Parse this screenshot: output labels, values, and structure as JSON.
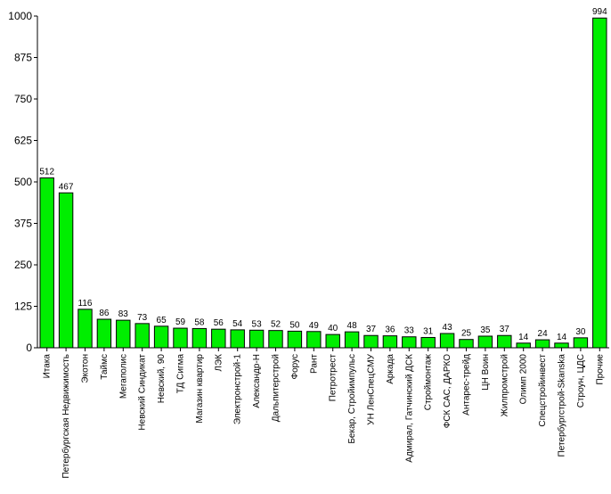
{
  "chart_data": {
    "type": "bar",
    "title": "",
    "xlabel": "",
    "ylabel": "",
    "ylim": [
      0,
      1000
    ],
    "yticks": [
      0,
      125,
      250,
      375,
      500,
      625,
      750,
      875,
      1000
    ],
    "grid": false,
    "legend": "none",
    "bar_color": "#00ee00",
    "bar_edge_color": "#000000",
    "categories": [
      "Итака",
      "Петербургская Недвижимость",
      "Экотон",
      "Таймс",
      "Мегаполис",
      "Невский Синдикат",
      "Невский, 90",
      "ТД Сигма",
      "Магазин квартир",
      "ЛЭК",
      "Электронстрой-1",
      "Александр-Н",
      "Дальпитерстрой",
      "Форус",
      "Рант",
      "Петротрест",
      "Бекар, Стройимпульс",
      "УН ЛенСпецСМУ",
      "Аркада",
      "Адмирал, Гатчинский ДСК",
      "Строймонтаж",
      "ФСК САС, ДАРКО",
      "Антарес-трейд",
      "ЦН Воин",
      "Жилпромстрой",
      "Олимп 2000",
      "Спецстройинвест",
      "Петербургстрой-Skanska",
      "Строун, ЦДС",
      "Прочие"
    ],
    "values": [
      512,
      467,
      116,
      86,
      83,
      73,
      65,
      59,
      58,
      56,
      54,
      53,
      52,
      50,
      49,
      40,
      48,
      37,
      36,
      33,
      31,
      43,
      25,
      35,
      37,
      14,
      24,
      14,
      30,
      994
    ]
  }
}
